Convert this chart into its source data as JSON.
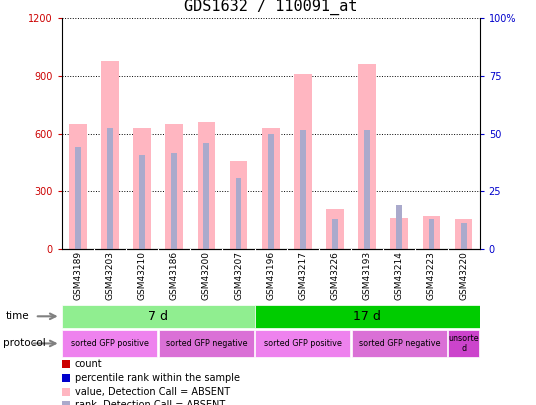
{
  "title": "GDS1632 / 110091_at",
  "samples": [
    "GSM43189",
    "GSM43203",
    "GSM43210",
    "GSM43186",
    "GSM43200",
    "GSM43207",
    "GSM43196",
    "GSM43217",
    "GSM43226",
    "GSM43193",
    "GSM43214",
    "GSM43223",
    "GSM43220"
  ],
  "value_bars": [
    650,
    980,
    630,
    650,
    660,
    460,
    630,
    910,
    210,
    960,
    160,
    170,
    155
  ],
  "rank_bars": [
    530,
    630,
    490,
    500,
    550,
    370,
    600,
    620,
    155,
    620,
    230,
    155,
    135
  ],
  "ylim_left": [
    0,
    1200
  ],
  "ylim_right": [
    0,
    100
  ],
  "left_ticks": [
    0,
    300,
    600,
    900,
    1200
  ],
  "right_ticks": [
    0,
    25,
    50,
    75,
    100
  ],
  "time_groups": [
    {
      "label": "7 d",
      "start": 0,
      "end": 6,
      "color": "#90EE90"
    },
    {
      "label": "17 d",
      "start": 6,
      "end": 13,
      "color": "#00CC00"
    }
  ],
  "protocol_groups": [
    {
      "label": "sorted GFP positive",
      "start": 0,
      "end": 3,
      "color": "#EE82EE"
    },
    {
      "label": "sorted GFP negative",
      "start": 3,
      "end": 6,
      "color": "#DA70D6"
    },
    {
      "label": "sorted GFP positive",
      "start": 6,
      "end": 9,
      "color": "#EE82EE"
    },
    {
      "label": "sorted GFP negative",
      "start": 9,
      "end": 12,
      "color": "#DA70D6"
    },
    {
      "label": "unsorte\nd",
      "start": 12,
      "end": 13,
      "color": "#CC44CC"
    }
  ],
  "bar_color_value_absent": "#FFB6C1",
  "bar_color_rank_absent": "#AAAACC",
  "legend_items": [
    {
      "color": "#CC0000",
      "label": "count"
    },
    {
      "color": "#0000CC",
      "label": "percentile rank within the sample"
    },
    {
      "color": "#FFB6C1",
      "label": "value, Detection Call = ABSENT"
    },
    {
      "color": "#AAAACC",
      "label": "rank, Detection Call = ABSENT"
    }
  ],
  "bg_color": "#FFFFFF",
  "left_label_color": "#CC0000",
  "right_label_color": "#0000CC",
  "sample_bg_color": "#CCCCCC"
}
